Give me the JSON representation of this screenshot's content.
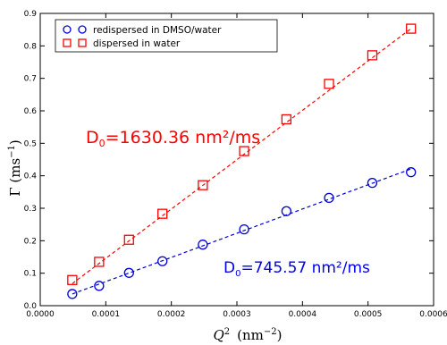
{
  "colors": {
    "red": "#ff0000",
    "blue": "#0000dd",
    "frame": "#000000"
  },
  "chart_data": {
    "type": "scatter",
    "xlabel_main": "Q",
    "xlabel_sup": "2",
    "xlabel_unit": "(nm",
    "xlabel_unit_sup": "−2",
    "xlabel_close": ")",
    "ylabel_main": "Γ (ms",
    "ylabel_sup": "−1",
    "ylabel_close": ")",
    "xlim": [
      0.0,
      0.0006
    ],
    "ylim": [
      0.0,
      0.9
    ],
    "xticks": [
      0.0,
      0.0001,
      0.0002,
      0.0003,
      0.0004,
      0.0005,
      0.0006
    ],
    "xtick_labels": [
      "0.0000",
      "0.0001",
      "0.0002",
      "0.0003",
      "0.0004",
      "0.0005",
      "0.0006"
    ],
    "yticks": [
      0.0,
      0.1,
      0.2,
      0.3,
      0.4,
      0.5,
      0.6,
      0.7,
      0.8,
      0.9
    ],
    "ytick_labels": [
      "0.0",
      "0.1",
      "0.2",
      "0.3",
      "0.4",
      "0.5",
      "0.6",
      "0.7",
      "0.8",
      "0.9"
    ],
    "legend_position": "top-left",
    "grid": false,
    "series": [
      {
        "name": "redispersed in DMSO/water",
        "marker": "circle",
        "color": "#0000dd",
        "x": [
          4.89e-05,
          8.98e-05,
          0.0001354,
          0.0001864,
          0.000248,
          0.000311,
          0.0003755,
          0.0004405,
          0.0005065,
          0.0005655
        ],
        "y": [
          0.036,
          0.061,
          0.101,
          0.137,
          0.188,
          0.235,
          0.291,
          0.332,
          0.378,
          0.411
        ],
        "fit": {
          "x": [
            4.89e-05,
            0.0005655
          ],
          "y": [
            0.036,
            0.421
          ]
        }
      },
      {
        "name": "dispersed in water",
        "marker": "square",
        "color": "#ff0000",
        "x": [
          4.89e-05,
          8.98e-05,
          0.0001354,
          0.0001864,
          0.000248,
          0.000311,
          0.0003755,
          0.0004405,
          0.0005065,
          0.0005655
        ],
        "y": [
          0.079,
          0.135,
          0.203,
          0.283,
          0.371,
          0.476,
          0.574,
          0.683,
          0.771,
          0.853
        ],
        "fit": {
          "x": [
            4.89e-05,
            0.0005655
          ],
          "y": [
            0.068,
            0.853
          ]
        }
      }
    ],
    "annotations": {
      "red_prefix": "D",
      "red_sub": "0",
      "red_value": "=1630.36 nm²/ms",
      "blue_prefix": "D",
      "blue_sub": "0",
      "blue_value": "=745.57 nm²/ms"
    }
  }
}
